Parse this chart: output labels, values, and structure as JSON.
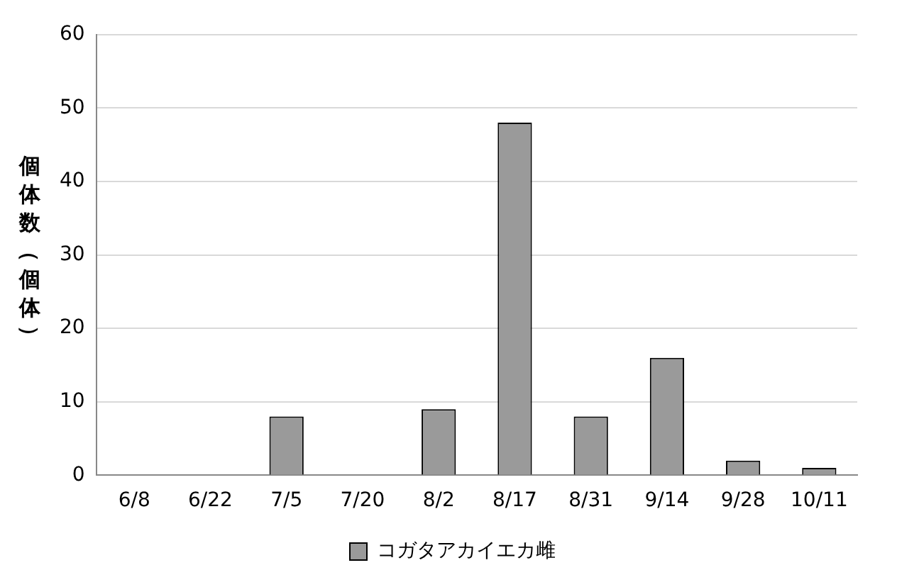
{
  "chart_data": {
    "type": "bar",
    "ylabel": "個体数（個体）",
    "categories": [
      "6/8",
      "6/22",
      "7/5",
      "7/20",
      "8/2",
      "8/17",
      "8/31",
      "9/14",
      "9/28",
      "10/11"
    ],
    "series": [
      {
        "name": "コガタアカイエカ雌",
        "color": "#9a9a9a",
        "values": [
          0,
          0,
          8,
          0,
          9,
          48,
          8,
          16,
          2,
          1
        ]
      }
    ],
    "ylim": [
      0,
      60
    ],
    "yticks": [
      0,
      10,
      20,
      30,
      40,
      50,
      60
    ],
    "grid": "y",
    "legend": "bottom"
  }
}
